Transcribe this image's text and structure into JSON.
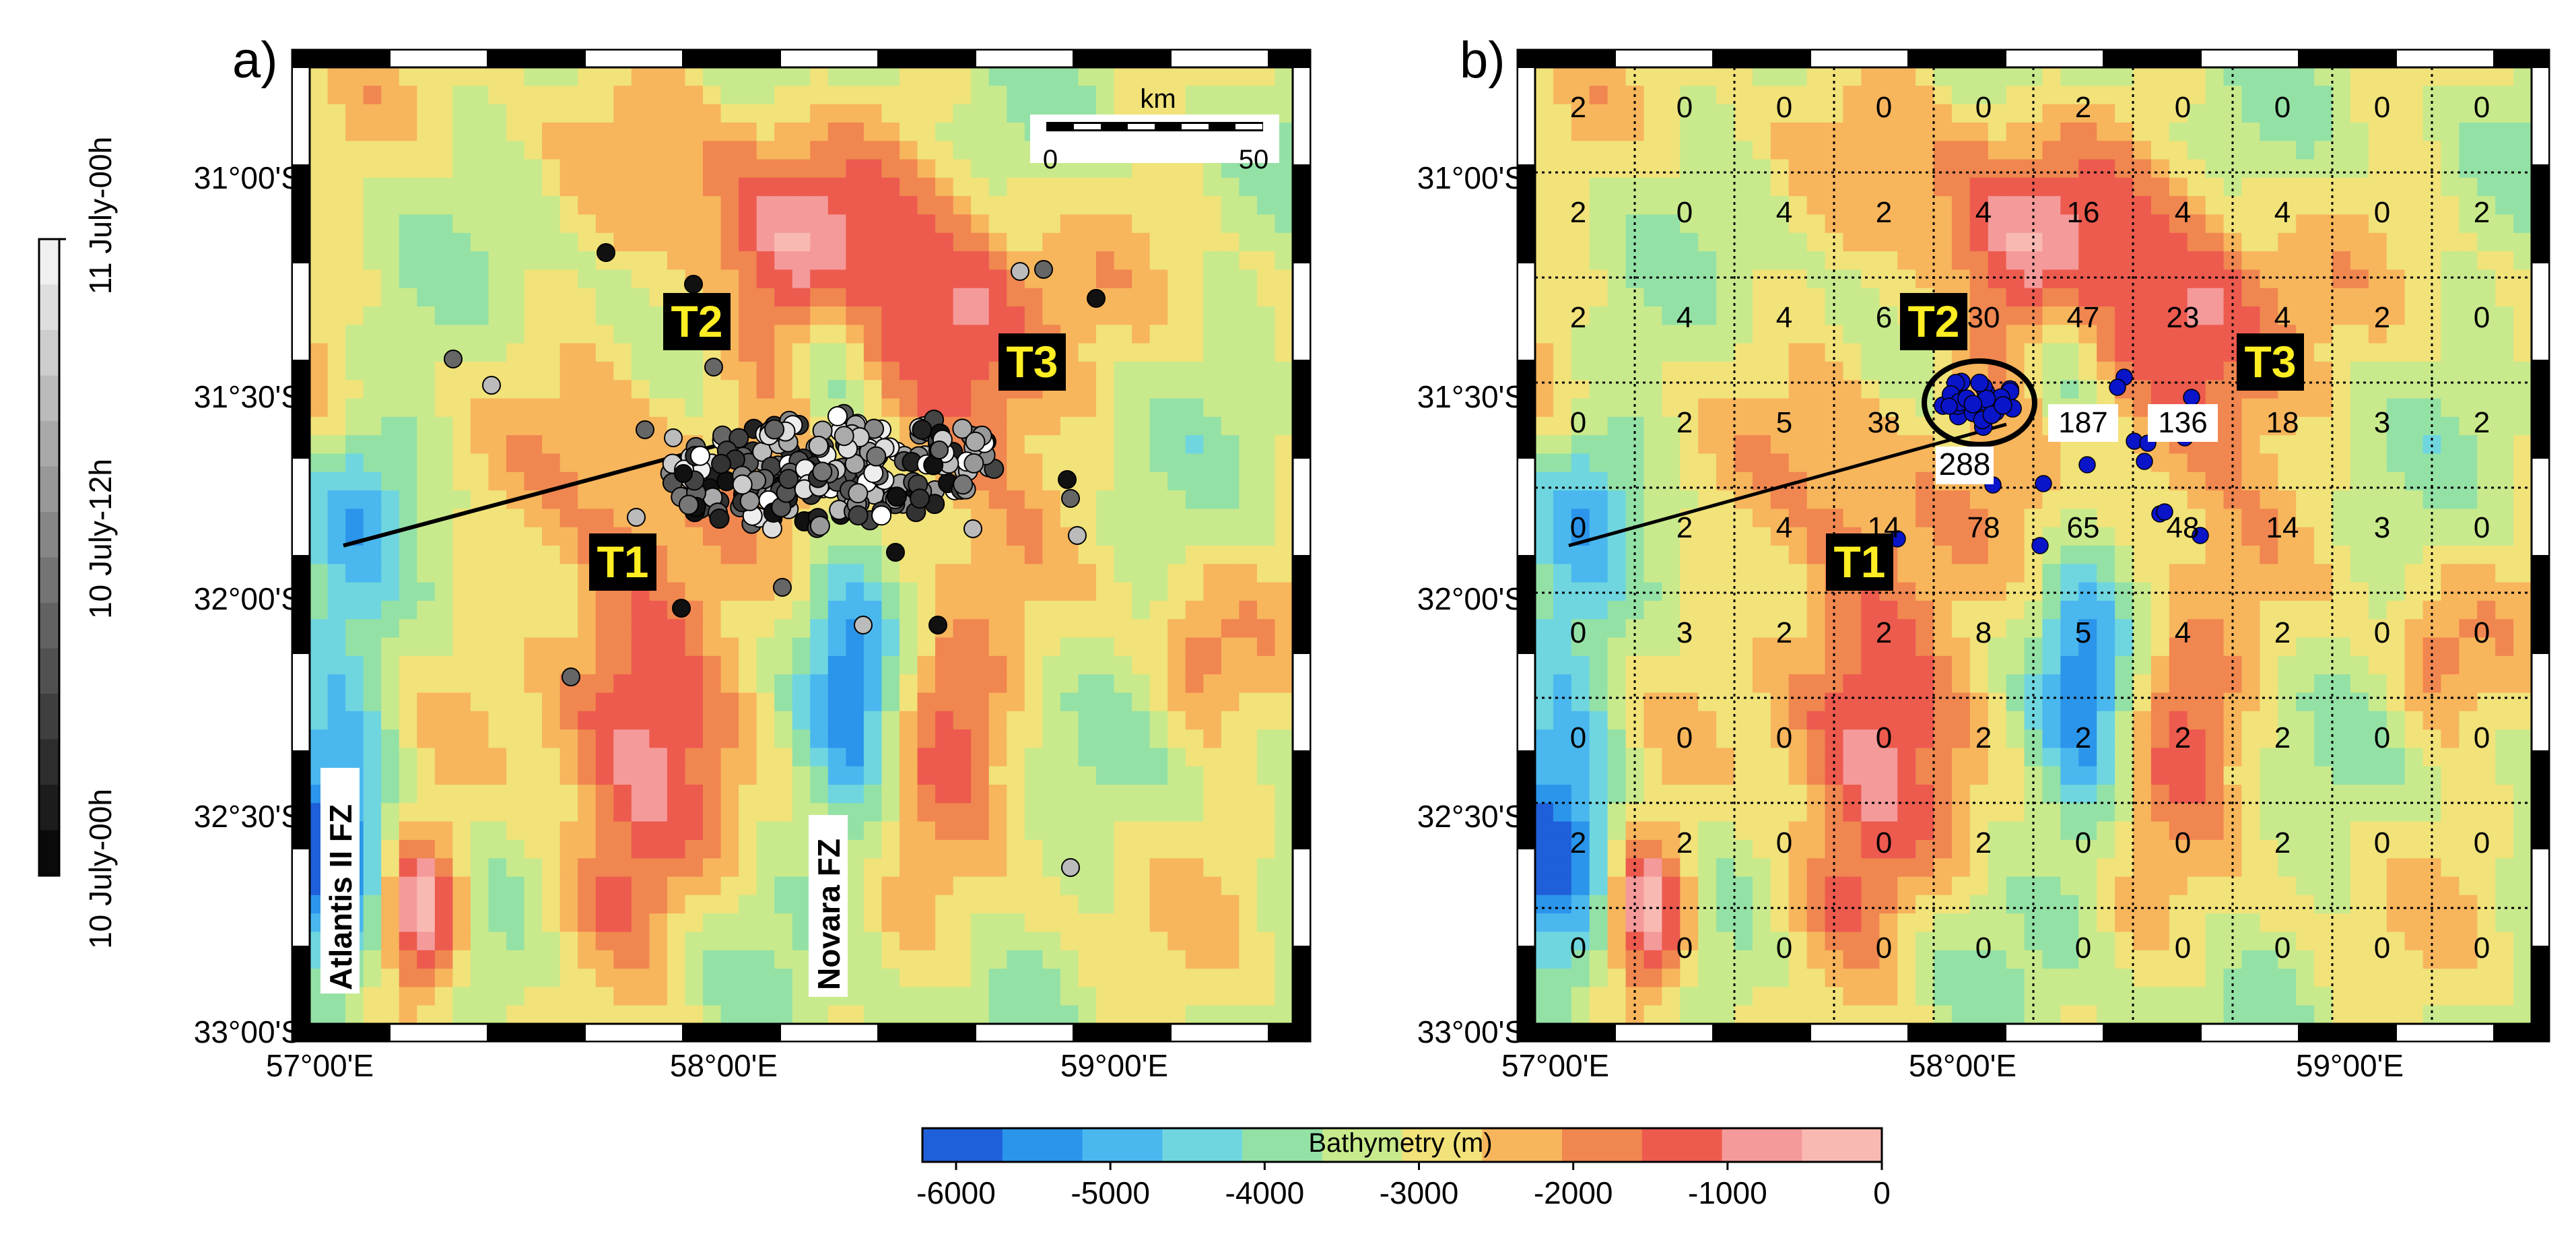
{
  "figure": {
    "panel_a_label": "a)",
    "panel_b_label": "b)",
    "lat_labels": [
      "31°00'S",
      "31°30'S",
      "32°00'S",
      "32°30'S",
      "33°00'S"
    ],
    "lon_labels": [
      "57°00'E",
      "58°00'E",
      "59°00'E"
    ]
  },
  "time_colorbar": {
    "labels": [
      "11 July-00h",
      "10 July-12h",
      "10 July-00h"
    ]
  },
  "bathymetry_colorbar": {
    "title": "Bathymetry (m)",
    "ticks": [
      "-6000",
      "-5000",
      "-4000",
      "-3000",
      "-2000",
      "-1000",
      "0"
    ],
    "colors": [
      "#1f5fd9",
      "#2a95ea",
      "#4ab8ee",
      "#6fd6e0",
      "#94e1a6",
      "#c8ea8c",
      "#f1e27a",
      "#f7b55c",
      "#f08650",
      "#ed5a4e",
      "#f49a9a",
      "#f9b9b3"
    ]
  },
  "scale_bar": {
    "unit": "km",
    "start": "0",
    "end": "50"
  },
  "map_labels": {
    "t1": "T1",
    "t2": "T2",
    "t3": "T3",
    "atlantis": "Atlantis II FZ",
    "novara": "Novara FZ"
  },
  "grid_counts": [
    [
      "2",
      "0",
      "0",
      "0",
      "0",
      "2",
      "0",
      "0",
      "0",
      "0"
    ],
    [
      "2",
      "0",
      "4",
      "2",
      "4",
      "16",
      "4",
      "4",
      "0",
      "2"
    ],
    [
      "2",
      "4",
      "4",
      "6",
      "30",
      "47",
      "23",
      "4",
      "2",
      "0"
    ],
    [
      "0",
      "2",
      "5",
      "38",
      "",
      "187",
      "136",
      "18",
      "3",
      "2"
    ],
    [
      "0",
      "2",
      "4",
      "14",
      "78",
      "65",
      "48",
      "14",
      "3",
      "0"
    ],
    [
      "0",
      "3",
      "2",
      "2",
      "8",
      "5",
      "4",
      "2",
      "0",
      "0"
    ],
    [
      "0",
      "0",
      "0",
      "0",
      "2",
      "2",
      "2",
      "2",
      "0",
      "0"
    ],
    [
      "2",
      "2",
      "0",
      "0",
      "2",
      "0",
      "0",
      "2",
      "0",
      "0"
    ],
    [
      "0",
      "0",
      "0",
      "0",
      "0",
      "0",
      "0",
      "0",
      "0",
      "0"
    ]
  ],
  "cluster_count": "288",
  "colors": {
    "deep": "#2a95ea",
    "shallow": "#ed5a4e",
    "label_bg": "#000000",
    "label_text": "#ffee22",
    "events_b": "#0a14c8"
  }
}
